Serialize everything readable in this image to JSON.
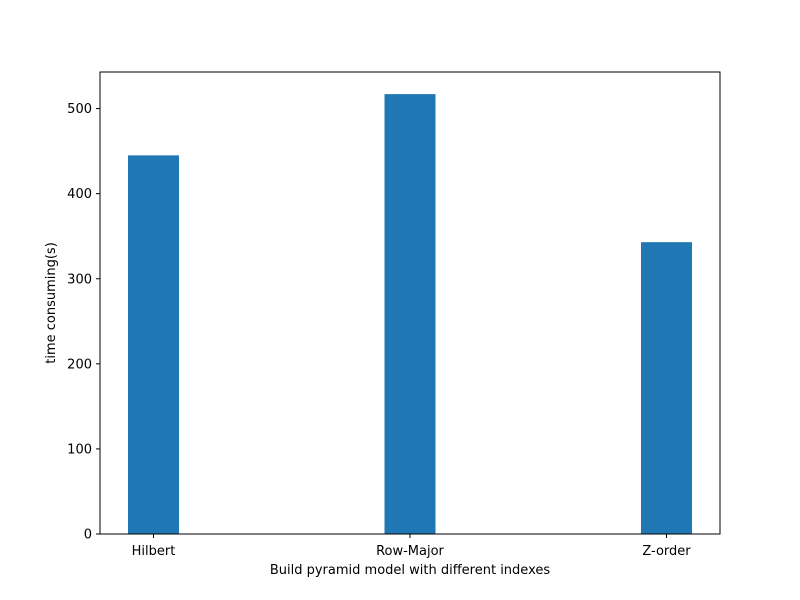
{
  "chart_data": {
    "type": "bar",
    "title": "",
    "categories": [
      "Hilbert",
      "Row-Major",
      "Z-order"
    ],
    "values": [
      445,
      517,
      343
    ],
    "xlabel": "Build pyramid model with different indexes",
    "ylabel": "time consuming(s)",
    "ylim": [
      0,
      543
    ],
    "yticks": [
      0,
      100,
      200,
      300,
      400,
      500
    ],
    "grid": false,
    "legend": "none"
  },
  "colors": {
    "bar": "#1f77b4",
    "axes": "#000000",
    "background": "#ffffff"
  }
}
